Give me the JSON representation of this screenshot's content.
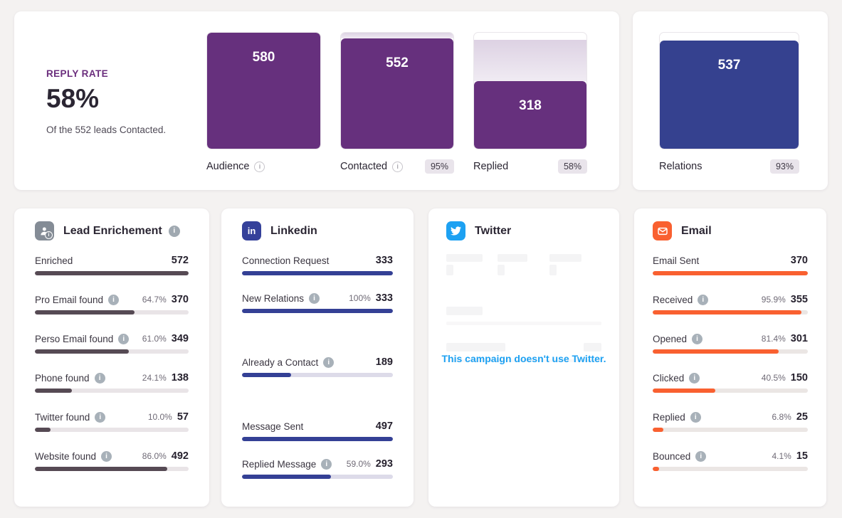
{
  "summary_card": {
    "kpi": {
      "title": "REPLY RATE",
      "value": "58%",
      "subtitle": "Of the 552 leads Contacted."
    },
    "funnel": [
      {
        "label": "Audience",
        "value": "580",
        "fill_pct": 100,
        "pending_pct": 0,
        "badge": ""
      },
      {
        "label": "Contacted",
        "value": "552",
        "fill_pct": 95,
        "pending_pct": 5,
        "badge": "95%"
      },
      {
        "label": "Replied",
        "value": "318",
        "fill_pct": 58,
        "pending_pct": 36,
        "badge": "58%"
      }
    ],
    "fill_color": "#66307D",
    "pending_color": "#E5DBEA"
  },
  "relations_card": {
    "label": "Relations",
    "value": "537",
    "badge": "93%",
    "fill_pct": 93,
    "fill_color": "#35418F"
  },
  "lead_card": {
    "title": "Lead Enrichement",
    "icon": "lead-enrichment-icon",
    "accent": "#564A54",
    "rows": [
      {
        "label": "Enriched",
        "pct": "",
        "value": "572",
        "fill_pct": 100
      },
      {
        "label": "Pro Email found",
        "pct": "64.7%",
        "value": "370",
        "fill_pct": 64.7
      },
      {
        "label": "Perso Email found",
        "pct": "61.0%",
        "value": "349",
        "fill_pct": 61.0
      },
      {
        "label": "Phone found",
        "pct": "24.1%",
        "value": "138",
        "fill_pct": 24.1
      },
      {
        "label": "Twitter found",
        "pct": "10.0%",
        "value": "57",
        "fill_pct": 10.0
      },
      {
        "label": "Website found",
        "pct": "86.0%",
        "value": "492",
        "fill_pct": 86.0
      }
    ]
  },
  "linkedin_card": {
    "title": "Linkedin",
    "icon": "linkedin-icon",
    "accent": "#344095",
    "rows": [
      {
        "label": "Connection Request",
        "pct": "",
        "value": "333",
        "fill_pct": 100
      },
      {
        "label": "New Relations",
        "pct": "100%",
        "value": "333",
        "fill_pct": 100
      },
      {
        "label": "Already a Contact",
        "pct": "",
        "value": "189",
        "fill_pct": 32.6
      },
      {
        "label": "Message Sent",
        "pct": "",
        "value": "497",
        "fill_pct": 100
      },
      {
        "label": "Replied Message",
        "pct": "59.0%",
        "value": "293",
        "fill_pct": 59.0
      }
    ]
  },
  "twitter_card": {
    "title": "Twitter",
    "icon": "twitter-icon",
    "accent": "#1DA1F2",
    "empty_message": "This campaign doesn't use Twitter."
  },
  "email_card": {
    "title": "Email",
    "icon": "email-icon",
    "accent": "#F96030",
    "rows": [
      {
        "label": "Email Sent",
        "pct": "",
        "value": "370",
        "fill_pct": 100
      },
      {
        "label": "Received",
        "pct": "95.9%",
        "value": "355",
        "fill_pct": 95.9
      },
      {
        "label": "Opened",
        "pct": "81.4%",
        "value": "301",
        "fill_pct": 81.4
      },
      {
        "label": "Clicked",
        "pct": "40.5%",
        "value": "150",
        "fill_pct": 40.5
      },
      {
        "label": "Replied",
        "pct": "6.8%",
        "value": "25",
        "fill_pct": 6.8
      },
      {
        "label": "Bounced",
        "pct": "4.1%",
        "value": "15",
        "fill_pct": 4.1
      }
    ]
  }
}
